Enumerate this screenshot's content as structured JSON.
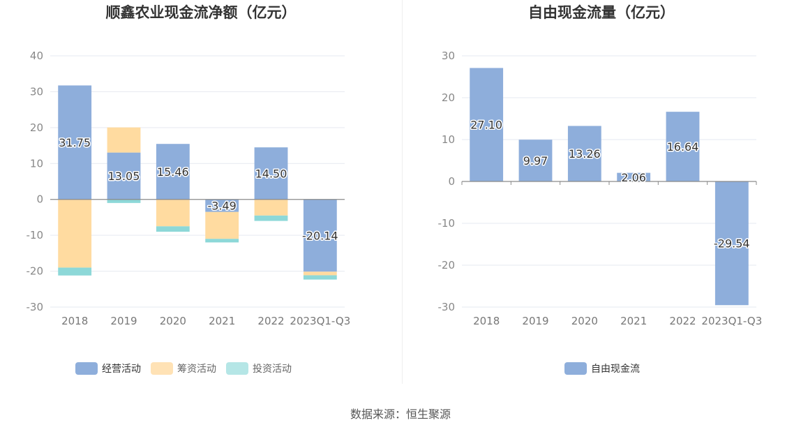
{
  "source_text": "数据来源：恒生聚源",
  "colors": {
    "operating": "#8eaedb",
    "financing": "#ffdba0",
    "investing": "#8dd8d8",
    "free_cash_flow": "#8eaedb"
  },
  "chart_data": [
    {
      "type": "bar",
      "stacked": true,
      "title": "顺鑫农业现金流净额（亿元）",
      "categories": [
        "2018",
        "2019",
        "2020",
        "2021",
        "2022",
        "2023Q1-Q3"
      ],
      "ylim": [
        -30,
        40
      ],
      "yticks": [
        -30,
        -20,
        -10,
        0,
        10,
        20,
        30,
        40
      ],
      "grid": true,
      "legend_position": "bottom",
      "series": [
        {
          "name": "经营活动",
          "values": [
            31.75,
            13.05,
            15.46,
            -3.49,
            14.5,
            -20.14
          ],
          "labels": [
            "31.75",
            "13.05",
            "15.46",
            "-3.49",
            "14.50",
            "-20.14"
          ]
        },
        {
          "name": "筹资活动",
          "values": [
            -19,
            7,
            -7.5,
            -7.5,
            -4.5,
            -1
          ]
        },
        {
          "name": "投资活动",
          "values": [
            -2.2,
            -1,
            -1.5,
            -1,
            -1.5,
            -1.2
          ]
        }
      ]
    },
    {
      "type": "bar",
      "title": "自由现金流量（亿元）",
      "categories": [
        "2018",
        "2019",
        "2020",
        "2021",
        "2022",
        "2023Q1-Q3"
      ],
      "ylim": [
        -30,
        30
      ],
      "yticks": [
        -30,
        -20,
        -10,
        0,
        10,
        20,
        30
      ],
      "grid": true,
      "legend_position": "bottom",
      "series": [
        {
          "name": "自由现金流",
          "values": [
            27.1,
            9.97,
            13.26,
            2.06,
            16.64,
            -29.54
          ],
          "labels": [
            "27.10",
            "9.97",
            "13.26",
            "2.06",
            "16.64",
            "-29.54"
          ]
        }
      ]
    }
  ]
}
